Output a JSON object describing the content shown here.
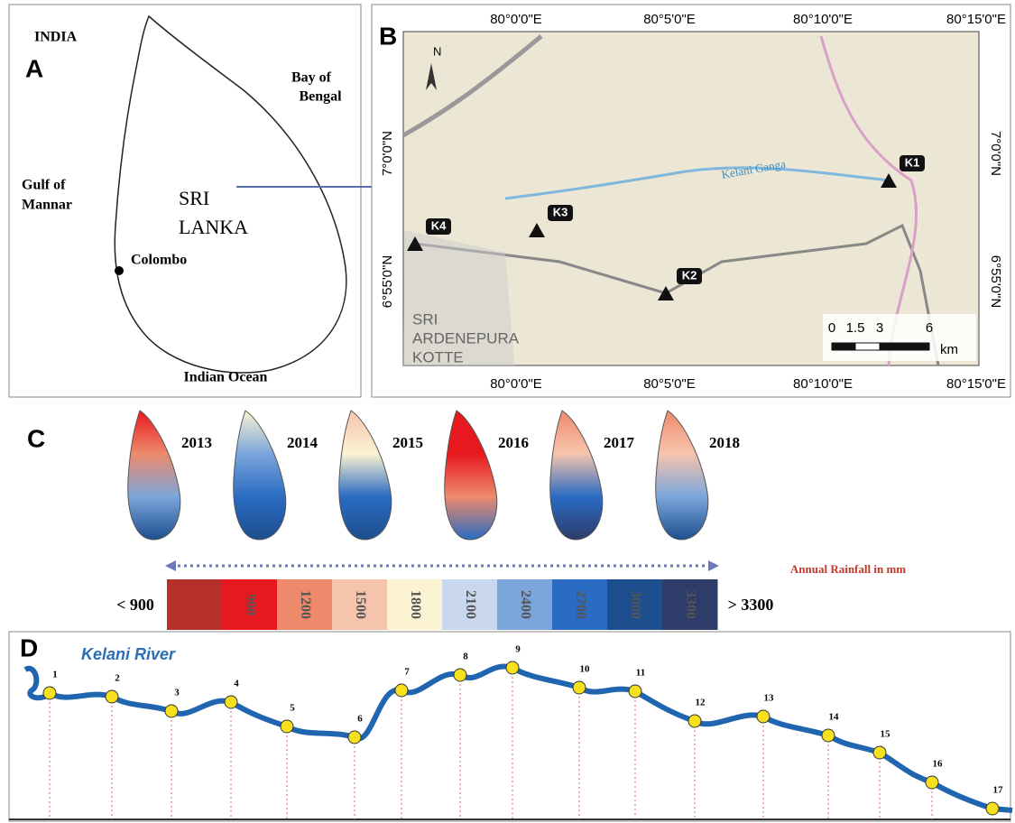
{
  "panel_a": {
    "letter": "A",
    "india": "INDIA",
    "bay": [
      "Bay of",
      "Bengal"
    ],
    "gulf": [
      "Gulf of",
      "Mannar"
    ],
    "country": [
      "SRI",
      "LANKA"
    ],
    "city": "Colombo",
    "ocean": "Indian Ocean"
  },
  "panel_b": {
    "letter": "B",
    "longitudes": [
      "80°0'0\"E",
      "80°5'0\"E",
      "80°10'0\"E",
      "80°15'0\"E"
    ],
    "latitudes": [
      "7°0'0\"N",
      "6°55'0\"N"
    ],
    "stations": [
      "K1",
      "K2",
      "K3",
      "K4"
    ],
    "river": "Kelani Ganga",
    "north": "N",
    "scale_ticks": [
      "0",
      "1.5",
      "3",
      "6"
    ],
    "scale_unit": "km",
    "places": [
      "SRI",
      "ARDENEPURA",
      "KOTTE"
    ]
  },
  "panel_c": {
    "letter": "C",
    "years": [
      "2013",
      "2014",
      "2015",
      "2016",
      "2017",
      "2018"
    ],
    "legend_title": "Annual Rainfall in mm",
    "min_label": "< 900",
    "max_label": "> 3300",
    "class_breaks": [
      "900",
      "1200",
      "1500",
      "1800",
      "2100",
      "2400",
      "2700",
      "3000",
      "3300"
    ],
    "class_colors": [
      "#b5302a",
      "#e8191e",
      "#ee8a6b",
      "#f6c4ad",
      "#fbf3d2",
      "#c9d8ef",
      "#7ba6db",
      "#2a6bc3",
      "#1d4f8e",
      "#2d3c68"
    ]
  },
  "panel_d": {
    "letter": "D",
    "river": "Kelani River",
    "points": [
      "1",
      "2",
      "3",
      "4",
      "5",
      "6",
      "7",
      "8",
      "9",
      "10",
      "11",
      "12",
      "13",
      "14",
      "15",
      "16",
      "17"
    ]
  }
}
